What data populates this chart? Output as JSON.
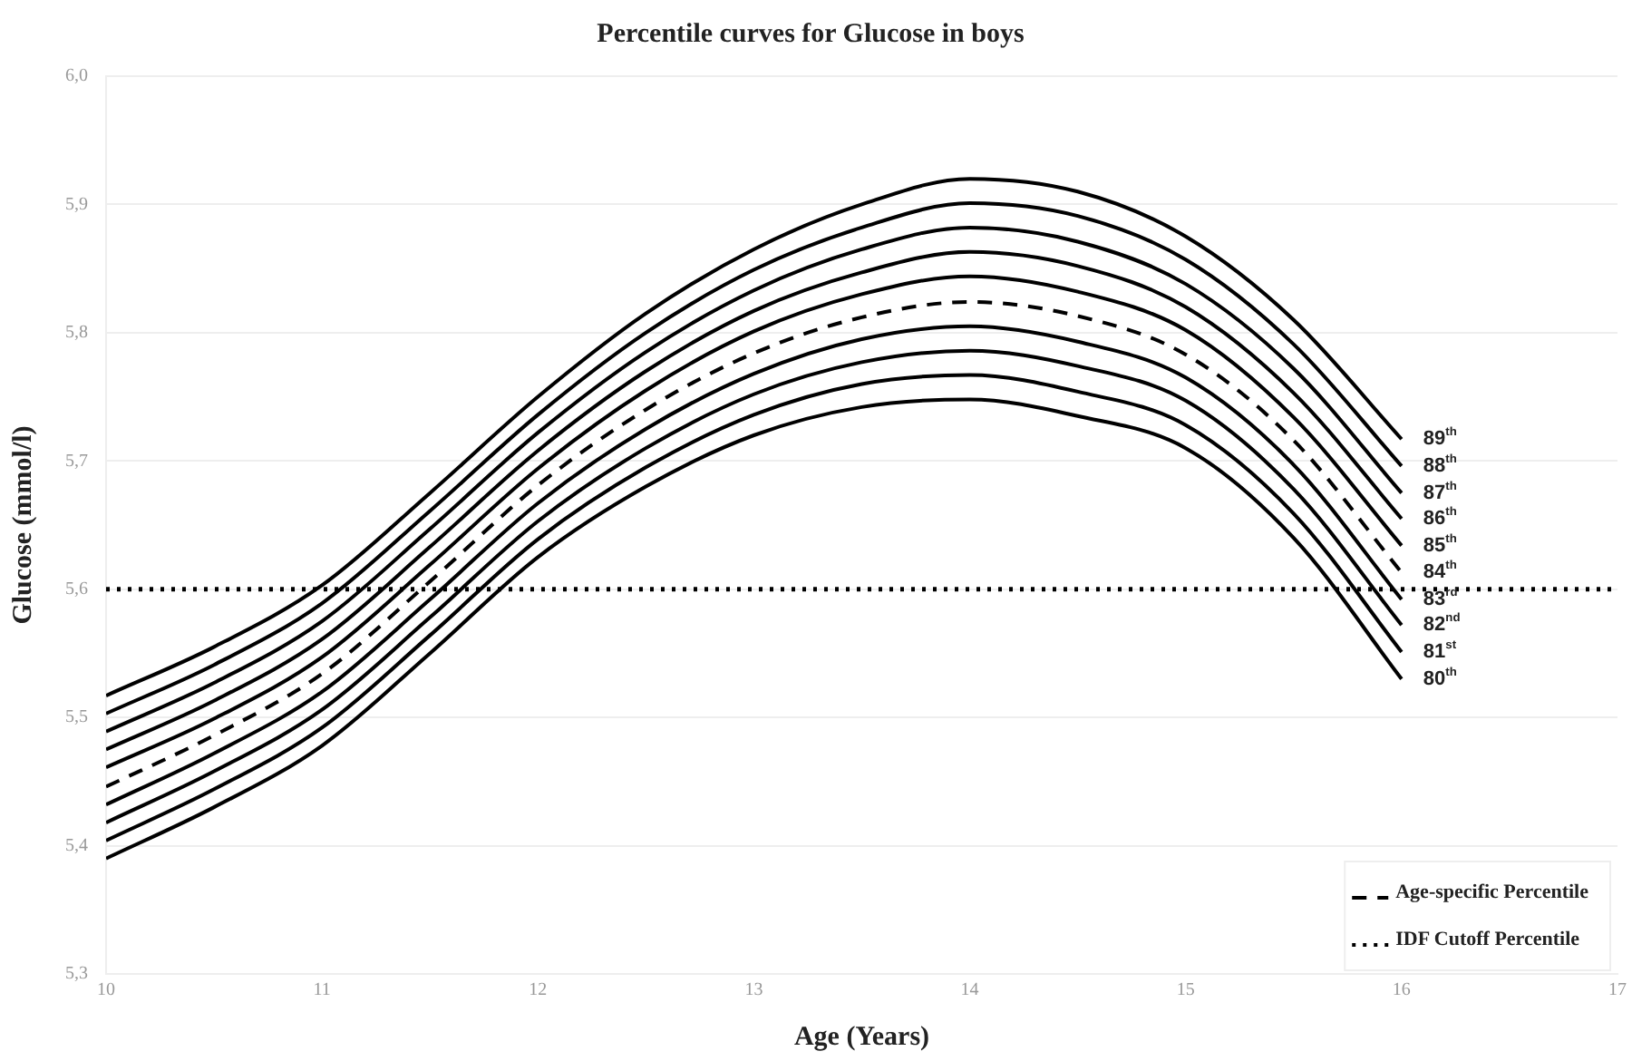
{
  "chart_data": {
    "type": "line",
    "title": "Percentile curves for Glucose in boys",
    "xlabel": "Age (Years)",
    "ylabel": "Glucose (mmol/l)",
    "x": [
      10,
      10.5,
      11,
      11.5,
      12,
      12.5,
      13,
      13.5,
      14,
      14.5,
      15,
      15.5,
      16
    ],
    "series": [
      {
        "name": "80$^{th}$",
        "color": "#000000",
        "values": [
          5.39,
          5.43,
          5.478,
          5.55,
          5.625,
          5.68,
          5.72,
          5.742,
          5.748,
          5.735,
          5.71,
          5.64,
          5.53
        ]
      },
      {
        "name": "81$^{st}$",
        "color": "#000000",
        "values": [
          5.404,
          5.444,
          5.492,
          5.564,
          5.639,
          5.695,
          5.736,
          5.76,
          5.767,
          5.754,
          5.728,
          5.659,
          5.551
        ]
      },
      {
        "name": "82$^{nd}$",
        "color": "#000000",
        "values": [
          5.418,
          5.458,
          5.506,
          5.578,
          5.653,
          5.71,
          5.752,
          5.777,
          5.786,
          5.774,
          5.747,
          5.678,
          5.572
        ]
      },
      {
        "name": "83$^{rd}$",
        "color": "#000000",
        "values": [
          5.432,
          5.472,
          5.52,
          5.592,
          5.667,
          5.725,
          5.768,
          5.795,
          5.805,
          5.793,
          5.765,
          5.697,
          5.592
        ]
      },
      {
        "name": "84$^{th}$",
        "color": "#000000",
        "line_style": "dashed",
        "values": [
          5.446,
          5.486,
          5.534,
          5.606,
          5.681,
          5.74,
          5.784,
          5.812,
          5.824,
          5.813,
          5.783,
          5.716,
          5.613
        ]
      },
      {
        "name": "85$^{th}$",
        "color": "#000000",
        "values": [
          5.461,
          5.499,
          5.547,
          5.619,
          5.694,
          5.755,
          5.801,
          5.83,
          5.844,
          5.832,
          5.802,
          5.734,
          5.634
        ]
      },
      {
        "name": "86$^{th}$",
        "color": "#000000",
        "values": [
          5.475,
          5.513,
          5.561,
          5.633,
          5.708,
          5.77,
          5.817,
          5.847,
          5.863,
          5.852,
          5.82,
          5.753,
          5.655
        ]
      },
      {
        "name": "87$^{th}$",
        "color": "#000000",
        "values": [
          5.489,
          5.527,
          5.575,
          5.647,
          5.722,
          5.785,
          5.833,
          5.865,
          5.882,
          5.871,
          5.838,
          5.772,
          5.675
        ]
      },
      {
        "name": "88$^{th}$",
        "color": "#000000",
        "values": [
          5.503,
          5.541,
          5.589,
          5.661,
          5.736,
          5.8,
          5.849,
          5.882,
          5.901,
          5.891,
          5.857,
          5.791,
          5.696
        ]
      },
      {
        "name": "89$^{th}$",
        "color": "#000000",
        "values": [
          5.517,
          5.555,
          5.603,
          5.675,
          5.75,
          5.815,
          5.865,
          5.9,
          5.92,
          5.91,
          5.875,
          5.81,
          5.717
        ]
      }
    ],
    "ref_lines": [
      {
        "axis": "y",
        "value": 5.6,
        "label": "IDF Cutoff Percentile",
        "color": "#000000",
        "line_style": "dotted"
      }
    ],
    "annotations": [
      "Age-specific Percentile"
    ],
    "xlim": [
      10,
      17
    ],
    "xticks": [
      10,
      11,
      12,
      13,
      14,
      15,
      16,
      17
    ],
    "ylim": [
      5.3,
      6.0
    ],
    "yticks": [
      {
        "value": 5.3,
        "label": "5,3"
      },
      {
        "value": 5.4,
        "label": "5,4"
      },
      {
        "value": 5.5,
        "label": "5,5"
      },
      {
        "value": 5.6,
        "label": "5,6"
      },
      {
        "value": 5.7,
        "label": "5,7"
      },
      {
        "value": 5.8,
        "label": "5,8"
      },
      {
        "value": 5.9,
        "label": "5,9"
      },
      {
        "value": 6.0,
        "label": "6,0"
      }
    ],
    "grid": "y",
    "legend": "bottom right",
    "marker": "none",
    "line_style": "solid"
  }
}
